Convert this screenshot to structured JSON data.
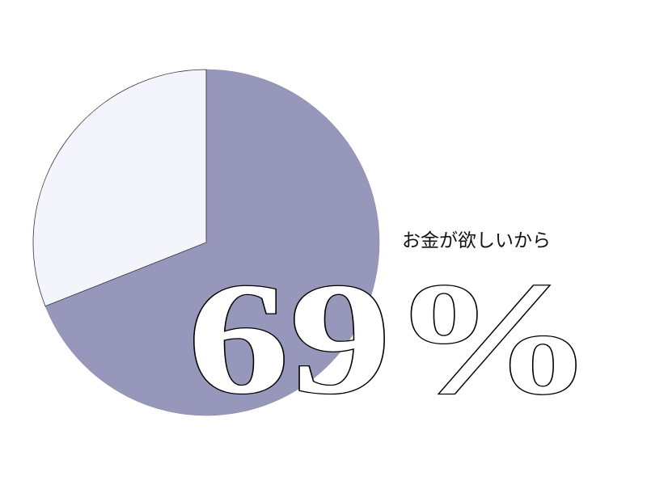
{
  "chart_data": {
    "type": "pie",
    "values": [
      69,
      31
    ],
    "colors": [
      "#9797bb",
      "#f4f4fd"
    ],
    "start": "top",
    "direction": "clockwise",
    "annotation": "お金が欲しいから",
    "highlight_label": "69%"
  }
}
